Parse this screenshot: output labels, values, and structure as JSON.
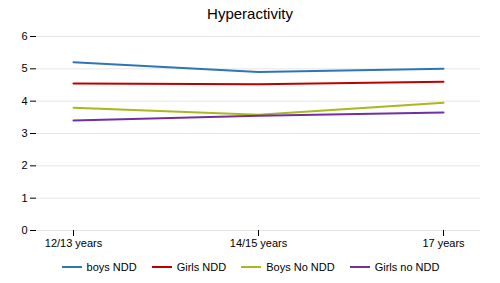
{
  "chart_data": {
    "type": "line",
    "title": "Hyperactivity",
    "categories": [
      "12/13 years",
      "14/15 years",
      "17 years"
    ],
    "series": [
      {
        "name": "boys NDD",
        "color": "#2E75B6",
        "values": [
          5.2,
          4.9,
          5.0
        ]
      },
      {
        "name": "Girls NDD",
        "color": "#C00000",
        "values": [
          4.55,
          4.52,
          4.6
        ]
      },
      {
        "name": "Boys No NDD",
        "color": "#A9B81E",
        "values": [
          3.8,
          3.58,
          3.95
        ]
      },
      {
        "name": "Girls no NDD",
        "color": "#7030A0",
        "values": [
          3.4,
          3.55,
          3.65
        ]
      }
    ],
    "ylim": [
      0,
      6
    ],
    "yticks": [
      0,
      1,
      2,
      3,
      4,
      5,
      6
    ],
    "grid": true,
    "legend": "bottom"
  }
}
